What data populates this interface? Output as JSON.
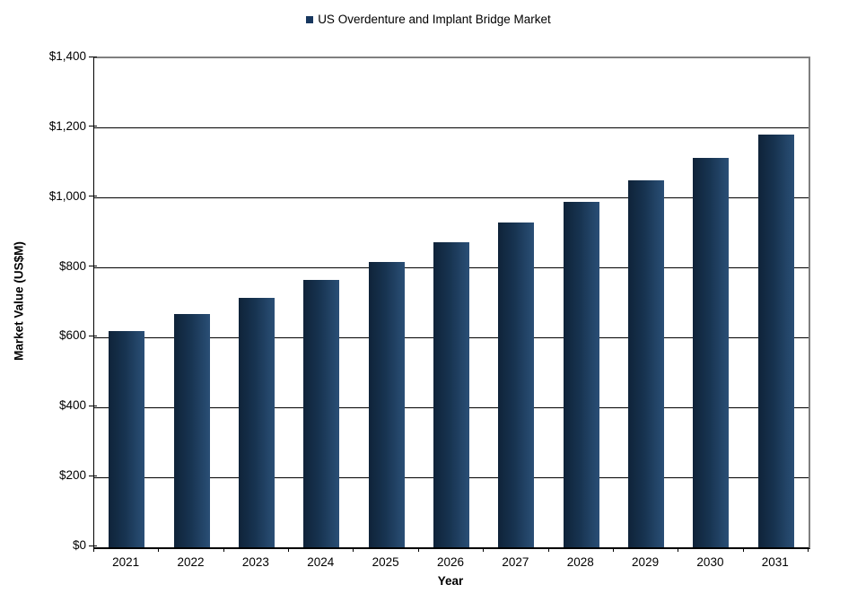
{
  "chart_data": {
    "type": "bar",
    "title": "",
    "xlabel": "Year",
    "ylabel": "Market Value (US$M)",
    "categories": [
      "2021",
      "2022",
      "2023",
      "2024",
      "2025",
      "2026",
      "2027",
      "2028",
      "2029",
      "2030",
      "2031"
    ],
    "series": [
      {
        "name": "US Overdenture and Implant Bridge Market",
        "values": [
          620,
          668,
          715,
          766,
          818,
          873,
          930,
          990,
          1051,
          1116,
          1182
        ]
      }
    ],
    "ylim": [
      0,
      1400
    ],
    "ytick_step": 200,
    "ytick_labels": [
      "$0",
      "$200",
      "$400",
      "$600",
      "$800",
      "$1,000",
      "$1,200",
      "$1,400"
    ],
    "grid": "horizontal-major",
    "legend_position": "top-center",
    "colors": {
      "legend_marker": "#17375e",
      "bar_gradient_left": "#0f2339",
      "bar_gradient_mid": "#173350",
      "bar_gradient_right": "#2a4f76",
      "gridline": "#000000",
      "plot_border_gray": "#7f7f7f",
      "axis_black": "#000000",
      "background": "#ffffff"
    }
  }
}
